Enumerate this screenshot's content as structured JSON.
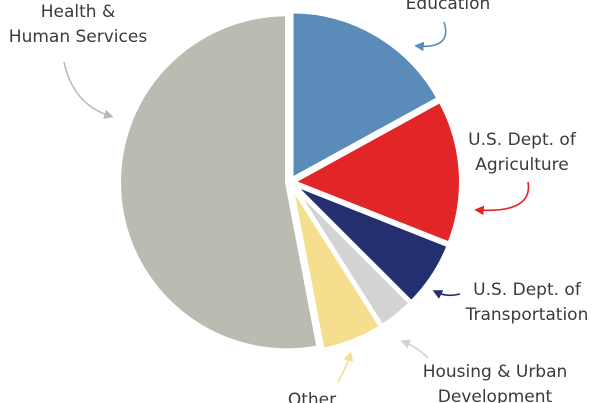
{
  "chart_data": {
    "type": "pie",
    "categories": [
      "Education",
      "U.S. Dept. of Agriculture",
      "U.S. Dept. of Transportation",
      "Housing & Urban Development",
      "Other",
      "Health & Human Services"
    ],
    "values": [
      17,
      14,
      6.5,
      3.5,
      6,
      53
    ],
    "colors": [
      "#5b8bb9",
      "#e22627",
      "#232f6e",
      "#d3d3d3",
      "#f5df8e",
      "#bcbbb1"
    ]
  }
}
